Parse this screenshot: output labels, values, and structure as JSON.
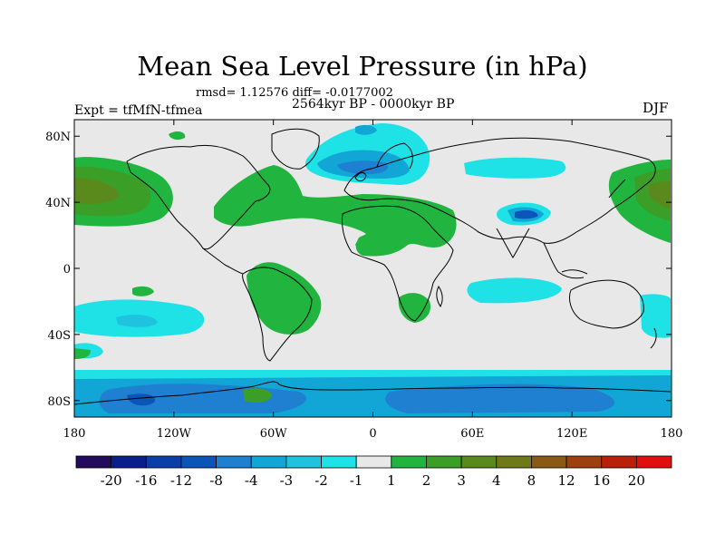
{
  "title": "Mean Sea Level Pressure (in hPa)",
  "stats": "rmsd= 1.12576 diff= -0.0177002",
  "period": "2564kyr BP - 0000kyr BP",
  "experiment": "Expt = tfMfN-tfmea",
  "season": "DJF",
  "axes": {
    "y_ticks": [
      {
        "label": "80N",
        "lat": 80
      },
      {
        "label": "40N",
        "lat": 40
      },
      {
        "label": "0",
        "lat": 0
      },
      {
        "label": "40S",
        "lat": -40
      },
      {
        "label": "80S",
        "lat": -80
      }
    ],
    "x_ticks": [
      {
        "label": "180",
        "lon": -180
      },
      {
        "label": "120W",
        "lon": -120
      },
      {
        "label": "60W",
        "lon": -60
      },
      {
        "label": "0",
        "lon": 0
      },
      {
        "label": "60E",
        "lon": 60
      },
      {
        "label": "120E",
        "lon": 120
      },
      {
        "label": "180",
        "lon": 180
      }
    ]
  },
  "colorbar": {
    "colors": [
      "#230a5c",
      "#0a1f8c",
      "#0a3fa8",
      "#0a55b8",
      "#1f7fd1",
      "#12a6d6",
      "#1fc3e0",
      "#1fe2e6",
      "#e8e8e8",
      "#21b53f",
      "#3b9e27",
      "#5a8a1c",
      "#6e7a17",
      "#8a5a14",
      "#9e3f0f",
      "#b8200a",
      "#e01010"
    ],
    "labels": [
      "-20",
      "-16",
      "-12",
      "-8",
      "-4",
      "-3",
      "-2",
      "-1",
      "1",
      "2",
      "3",
      "4",
      "8",
      "12",
      "16",
      "20"
    ]
  },
  "colors": {
    "background": "#e8e8e8",
    "coast": "#000000"
  }
}
